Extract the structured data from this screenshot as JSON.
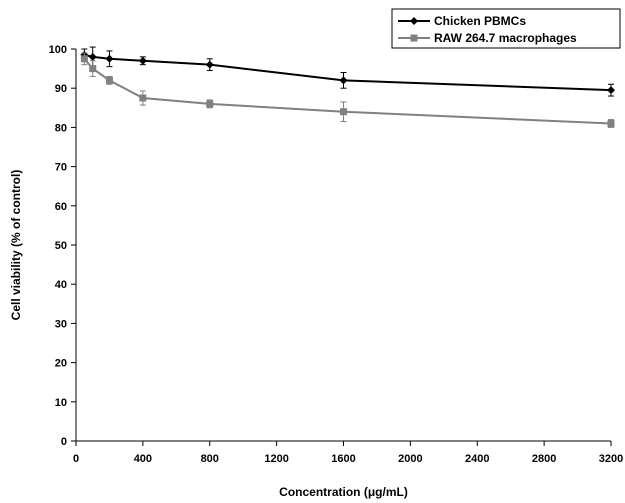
{
  "chart_data": {
    "type": "line",
    "title": "",
    "xlabel": "Concentration (μg/mL)",
    "ylabel": "Cell viability (% of control)",
    "xlim": [
      0,
      3200
    ],
    "ylim": [
      0,
      100
    ],
    "xticks": [
      0,
      400,
      800,
      1200,
      1600,
      2000,
      2400,
      2800,
      3200
    ],
    "yticks": [
      0,
      10,
      20,
      30,
      40,
      50,
      60,
      70,
      80,
      90,
      100
    ],
    "grid": false,
    "legend_position": "top-right",
    "series": [
      {
        "name": "Chicken PBMCs",
        "color": "#000000",
        "marker": "diamond",
        "x": [
          50,
          100,
          200,
          400,
          800,
          1600,
          3200
        ],
        "y": [
          98.5,
          98.0,
          97.5,
          97.0,
          96.0,
          92.0,
          89.5
        ],
        "error": [
          1.5,
          2.5,
          2.0,
          1.0,
          1.5,
          2.0,
          1.5
        ]
      },
      {
        "name": "RAW 264.7 macrophages",
        "color": "#808080",
        "marker": "square",
        "x": [
          50,
          100,
          200,
          400,
          800,
          1600,
          3200
        ],
        "y": [
          97.5,
          95.0,
          92.0,
          87.5,
          86.0,
          84.0,
          81.0
        ],
        "error": [
          1.5,
          2.0,
          1.0,
          1.8,
          1.0,
          2.5,
          1.0
        ]
      }
    ]
  }
}
